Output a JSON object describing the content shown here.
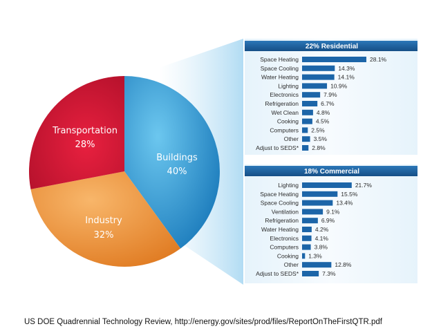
{
  "caption": "US DOE Quadrennial Technology Review, http://energy.gov/sites/prod/files/ReportOnTheFirstQTR.pdf",
  "colors": {
    "buildings": "#2a9bd6",
    "industry": "#f3a04a",
    "transportation": "#d91b3a",
    "panel_header": "#1a5f9e",
    "bar": "#1c65a8",
    "funnel": "#d2eaf8"
  },
  "chart_data": [
    {
      "type": "pie",
      "slices": [
        {
          "name": "Buildings",
          "value_label": "40%",
          "value": 40
        },
        {
          "name": "Industry",
          "value_label": "32%",
          "value": 32
        },
        {
          "name": "Transportation",
          "value_label": "28%",
          "value": 28
        }
      ]
    },
    {
      "type": "bar",
      "title": "22% Residential",
      "categories": [
        "Space Heating",
        "Space Cooling",
        "Water Heating",
        "Lighting",
        "Electronics",
        "Refrigeration",
        "Wet Clean",
        "Cooking",
        "Computers",
        "Other",
        "Adjust to SEDS*"
      ],
      "values": [
        28.1,
        14.3,
        14.1,
        10.9,
        7.9,
        6.7,
        4.8,
        4.5,
        2.5,
        3.5,
        2.8
      ],
      "value_labels": [
        "28.1%",
        "14.3%",
        "14.1%",
        "10.9%",
        "7.9%",
        "6.7%",
        "4.8%",
        "4.5%",
        "2.5%",
        "3.5%",
        "2.8%"
      ]
    },
    {
      "type": "bar",
      "title": "18% Commercial",
      "categories": [
        "Lighting",
        "Space Heating",
        "Space Cooling",
        "Ventilation",
        "Refrigeration",
        "Water Heating",
        "Electronics",
        "Computers",
        "Cooking",
        "Other",
        "Adjust to SEDS*"
      ],
      "values": [
        21.7,
        15.5,
        13.4,
        9.1,
        6.9,
        4.2,
        4.1,
        3.8,
        1.3,
        12.8,
        7.3
      ],
      "value_labels": [
        "21.7%",
        "15.5%",
        "13.4%",
        "9.1%",
        "6.9%",
        "4.2%",
        "4.1%",
        "3.8%",
        "1.3%",
        "12.8%",
        "7.3%"
      ]
    }
  ]
}
